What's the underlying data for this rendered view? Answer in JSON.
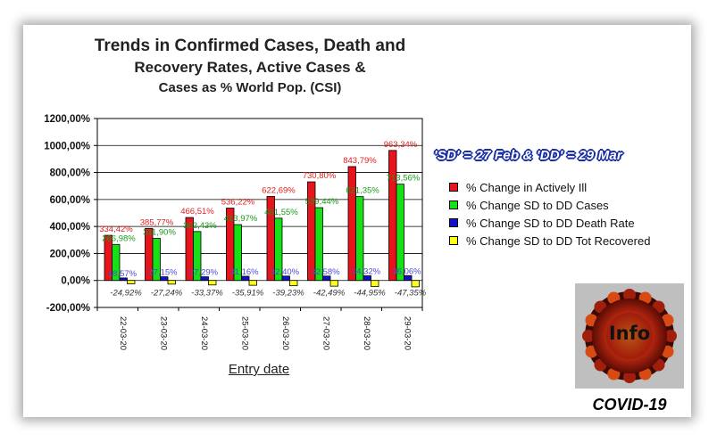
{
  "title_lines": [
    "Trends in Confirmed Cases, Death and",
    "Recovery Rates, Active Cases &",
    "Cases as % World Pop. (CSI)"
  ],
  "subtitle": "'SD' = 27 Feb & 'DD' = 29 Mar",
  "xlabel": "Entry date",
  "logo_text": "Info",
  "brand": "COVID-19",
  "chart_data": {
    "type": "bar",
    "title": "Trends in Confirmed Cases, Death and Recovery Rates, Active Cases & Cases as % World Pop. (CSI)",
    "xlabel": "Entry date",
    "ylabel": "",
    "ylim": [
      -200,
      1200
    ],
    "yticks": [
      "1200,00%",
      "1000,00%",
      "800,00%",
      "600,00%",
      "400,00%",
      "200,00%",
      "0,00%",
      "-200,00%"
    ],
    "grid": "horizontal",
    "legend": "right",
    "categories": [
      "22-03-20",
      "23-03-20",
      "24-03-20",
      "25-03-20",
      "26-03-20",
      "27-03-20",
      "28-03-20",
      "29-03-20"
    ],
    "series": [
      {
        "name": "% Change in Actively Ill",
        "color": "#e8141b",
        "label_color": "#e02020",
        "values": [
          334.42,
          385.77,
          466.51,
          536.22,
          622.69,
          730.8,
          843.79,
          963.34
        ],
        "labels": [
          "334,42%",
          "385,77%",
          "466,51%",
          "536,22%",
          "622,69%",
          "730,80%",
          "843,79%",
          "963,34%"
        ]
      },
      {
        "name": "% Change SD to DD Cases",
        "color": "#16e016",
        "label_color": "#1a9a1a",
        "values": [
          266.98,
          311.9,
          362.43,
          413.97,
          461.55,
          539.44,
          621.35,
          713.56
        ],
        "labels": [
          "266,98%",
          "311,90%",
          "362,43%",
          "413,97%",
          "461,55%",
          "539,44%",
          "621,35%",
          "713,56%"
        ]
      },
      {
        "name": "% Change SD to DD Death Rate",
        "color": "#1010c8",
        "label_color": "#4b4bd8",
        "values": [
          18.57,
          27.15,
          27.29,
          31.16,
          32.4,
          32.58,
          34.32,
          36.06
        ],
        "labels": [
          "18,57%",
          "27,15%",
          "27,29%",
          "31,16%",
          "32,40%",
          "32,58%",
          "34,32%",
          "36,06%"
        ]
      },
      {
        "name": "% Change SD to DD Tot Recovered",
        "color": "#ffff1a",
        "label_color": "#333333",
        "values": [
          -24.92,
          -27.24,
          -33.37,
          -35.91,
          -39.23,
          -42.49,
          -44.95,
          -47.35
        ],
        "labels": [
          "-24,92%",
          "-27,24%",
          "-33,37%",
          "-35,91%",
          "-39,23%",
          "-42,49%",
          "-44,95%",
          "-47,35%"
        ]
      }
    ]
  }
}
